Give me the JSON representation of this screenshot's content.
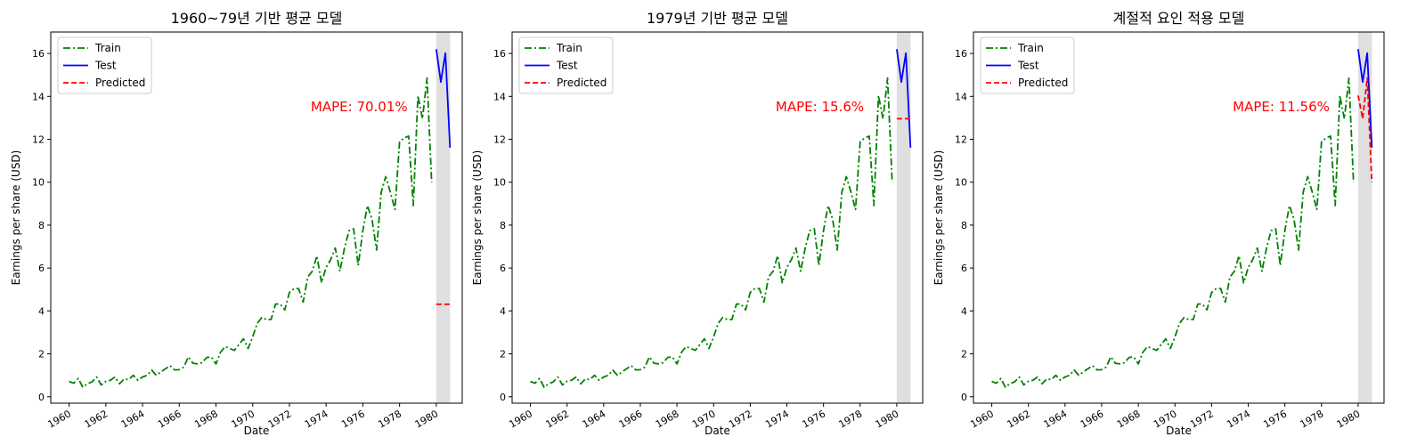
{
  "chart_data": [
    {
      "type": "line",
      "title": "1960~79년 기반 평균 모델",
      "xlabel": "Date",
      "ylabel": "Earnings per share (USD)",
      "annotation": "MAPE: 70.01%",
      "predicted": [
        4.31,
        4.31,
        4.31,
        4.31
      ]
    },
    {
      "type": "line",
      "title": "1979년 기반 평균 모델",
      "xlabel": "Date",
      "ylabel": "Earnings per share (USD)",
      "annotation": "MAPE: 15.6%",
      "predicted": [
        12.96,
        12.96,
        12.96,
        12.96
      ]
    },
    {
      "type": "line",
      "title": "계절적 요인 적용 모델",
      "xlabel": "Date",
      "ylabel": "Earnings per share (USD)",
      "annotation": "MAPE: 11.56%",
      "predicted": [
        14.04,
        12.96,
        14.85,
        9.99
      ]
    }
  ],
  "shared": {
    "train": {
      "name": "Train",
      "color": "#008000",
      "x": [
        "1960-01-01",
        "1960-04-01",
        "1960-07-01",
        "1960-10-01",
        "1961-01-01",
        "1961-04-01",
        "1961-07-01",
        "1961-10-01",
        "1962-01-01",
        "1962-04-01",
        "1962-07-01",
        "1962-10-01",
        "1963-01-01",
        "1963-04-01",
        "1963-07-01",
        "1963-10-01",
        "1964-01-01",
        "1964-04-01",
        "1964-07-01",
        "1964-10-01",
        "1965-01-01",
        "1965-04-01",
        "1965-07-01",
        "1965-10-01",
        "1966-01-01",
        "1966-04-01",
        "1966-07-01",
        "1966-10-01",
        "1967-01-01",
        "1967-04-01",
        "1967-07-01",
        "1967-10-01",
        "1968-01-01",
        "1968-04-01",
        "1968-07-01",
        "1968-10-01",
        "1969-01-01",
        "1969-04-01",
        "1969-07-01",
        "1969-10-01",
        "1970-01-01",
        "1970-04-01",
        "1970-07-01",
        "1970-10-01",
        "1971-01-01",
        "1971-04-01",
        "1971-07-01",
        "1971-10-01",
        "1972-01-01",
        "1972-04-01",
        "1972-07-01",
        "1972-10-01",
        "1973-01-01",
        "1973-04-01",
        "1973-07-01",
        "1973-10-01",
        "1974-01-01",
        "1974-04-01",
        "1974-07-01",
        "1974-10-01",
        "1975-01-01",
        "1975-04-01",
        "1975-07-01",
        "1975-10-01",
        "1976-01-01",
        "1976-04-01",
        "1976-07-01",
        "1976-10-01",
        "1977-01-01",
        "1977-04-01",
        "1977-07-01",
        "1977-10-01",
        "1978-01-01",
        "1978-04-01",
        "1978-07-01",
        "1978-10-01",
        "1979-01-01",
        "1979-04-01",
        "1979-07-01",
        "1979-10-01"
      ],
      "values": [
        0.71,
        0.63,
        0.85,
        0.44,
        0.61,
        0.69,
        0.92,
        0.55,
        0.72,
        0.77,
        0.92,
        0.6,
        0.83,
        0.8,
        1.0,
        0.77,
        0.92,
        1.0,
        1.24,
        1.0,
        1.16,
        1.3,
        1.45,
        1.25,
        1.26,
        1.38,
        1.86,
        1.56,
        1.53,
        1.59,
        1.83,
        1.86,
        1.53,
        2.07,
        2.34,
        2.25,
        2.16,
        2.43,
        2.7,
        2.25,
        2.79,
        3.42,
        3.69,
        3.6,
        3.6,
        4.32,
        4.32,
        4.05,
        4.86,
        5.04,
        5.04,
        4.41,
        5.58,
        5.85,
        6.57,
        5.31,
        6.03,
        6.39,
        6.93,
        5.85,
        6.93,
        7.74,
        7.83,
        6.12,
        7.74,
        8.91,
        8.28,
        6.84,
        9.54,
        10.26,
        9.54,
        8.73,
        11.88,
        12.06,
        12.15,
        8.91,
        14.04,
        12.96,
        14.85,
        9.99
      ]
    },
    "test": {
      "name": "Test",
      "color": "#0000ff",
      "x": [
        "1980-01-01",
        "1980-04-01",
        "1980-07-01",
        "1980-10-01"
      ],
      "values": [
        16.2,
        14.67,
        16.02,
        11.61
      ]
    },
    "predicted_series": {
      "name": "Predicted",
      "color": "#ff0000"
    },
    "mape_color": "#ff0000",
    "xticks": [
      "1960",
      "1962",
      "1964",
      "1966",
      "1968",
      "1970",
      "1972",
      "1974",
      "1976",
      "1978",
      "1980"
    ],
    "yticks": [
      0,
      2,
      4,
      6,
      8,
      10,
      12,
      14,
      16
    ],
    "ylim": [
      -0.3,
      17.0
    ],
    "xlim": [
      "1959-01-01",
      "1981-06-01"
    ],
    "shade": [
      "1980-01-01",
      "1980-10-01"
    ],
    "legend_position": "upper left",
    "grid": false
  }
}
